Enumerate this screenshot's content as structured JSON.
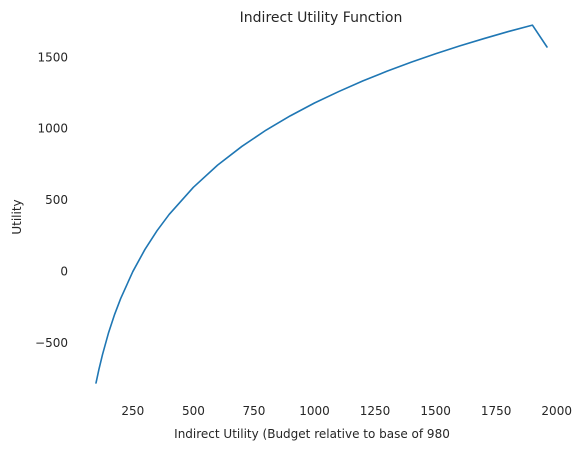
{
  "chart_data": {
    "type": "line",
    "title": "Indirect Utility Function",
    "xlabel": "Indirect Utility (Budget relative to base of 980",
    "ylabel": "Utility",
    "xlim": [
      98,
      1960
    ],
    "ylim": [
      -780,
      1572
    ],
    "xticks": [
      250,
      500,
      750,
      1000,
      1250,
      1500,
      1750,
      2000
    ],
    "yticks": [
      -500,
      0,
      500,
      1000,
      1500
    ],
    "tick_labels_x": [
      "250",
      "500",
      "750",
      "1000",
      "1250",
      "1500",
      "1750",
      "2000"
    ],
    "tick_labels_y": [
      "−500",
      "0",
      "500",
      "1000",
      "1500"
    ],
    "grid": false,
    "line_color": "#1f77b4",
    "series": [
      {
        "x": [
          98,
          110,
          125,
          150,
          175,
          200,
          250,
          300,
          350,
          400,
          500,
          600,
          700,
          800,
          900,
          1000,
          1100,
          1200,
          1300,
          1400,
          1500,
          1600,
          1700,
          1800,
          1900,
          1960
        ],
        "values": [
          -780,
          -685,
          -580,
          -427,
          -299,
          -188,
          0,
          155,
          286,
          400,
          590,
          745,
          876,
          990,
          1090,
          1180,
          1260,
          1335,
          1403,
          1466,
          1525,
          1580,
          1631,
          1680,
          1725,
          1572
        ]
      }
    ]
  }
}
